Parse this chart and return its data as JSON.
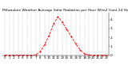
{
  "title": "Milwaukee Weather Average Solar Radiation per Hour W/m2 (Last 24 Hours)",
  "hours": [
    0,
    1,
    2,
    3,
    4,
    5,
    6,
    7,
    8,
    9,
    10,
    11,
    12,
    13,
    14,
    15,
    16,
    17,
    18,
    19,
    20,
    21,
    22,
    23
  ],
  "values": [
    0,
    0,
    0,
    0,
    0,
    0,
    0,
    5,
    40,
    120,
    220,
    350,
    430,
    370,
    290,
    210,
    130,
    60,
    15,
    2,
    0,
    0,
    0,
    0
  ],
  "line_color": "#ff0000",
  "bg_color": "#ffffff",
  "grid_color": "#888888",
  "ylim": [
    0,
    480
  ],
  "ytick_positions": [
    0,
    100,
    200,
    300,
    400
  ],
  "ytick_labels": [
    "0",
    "1.",
    "2.",
    "3.",
    "4."
  ],
  "ylabel_fontsize": 3.0,
  "xlabel_fontsize": 2.8,
  "title_fontsize": 3.2,
  "xlim": [
    -0.5,
    23.5
  ]
}
